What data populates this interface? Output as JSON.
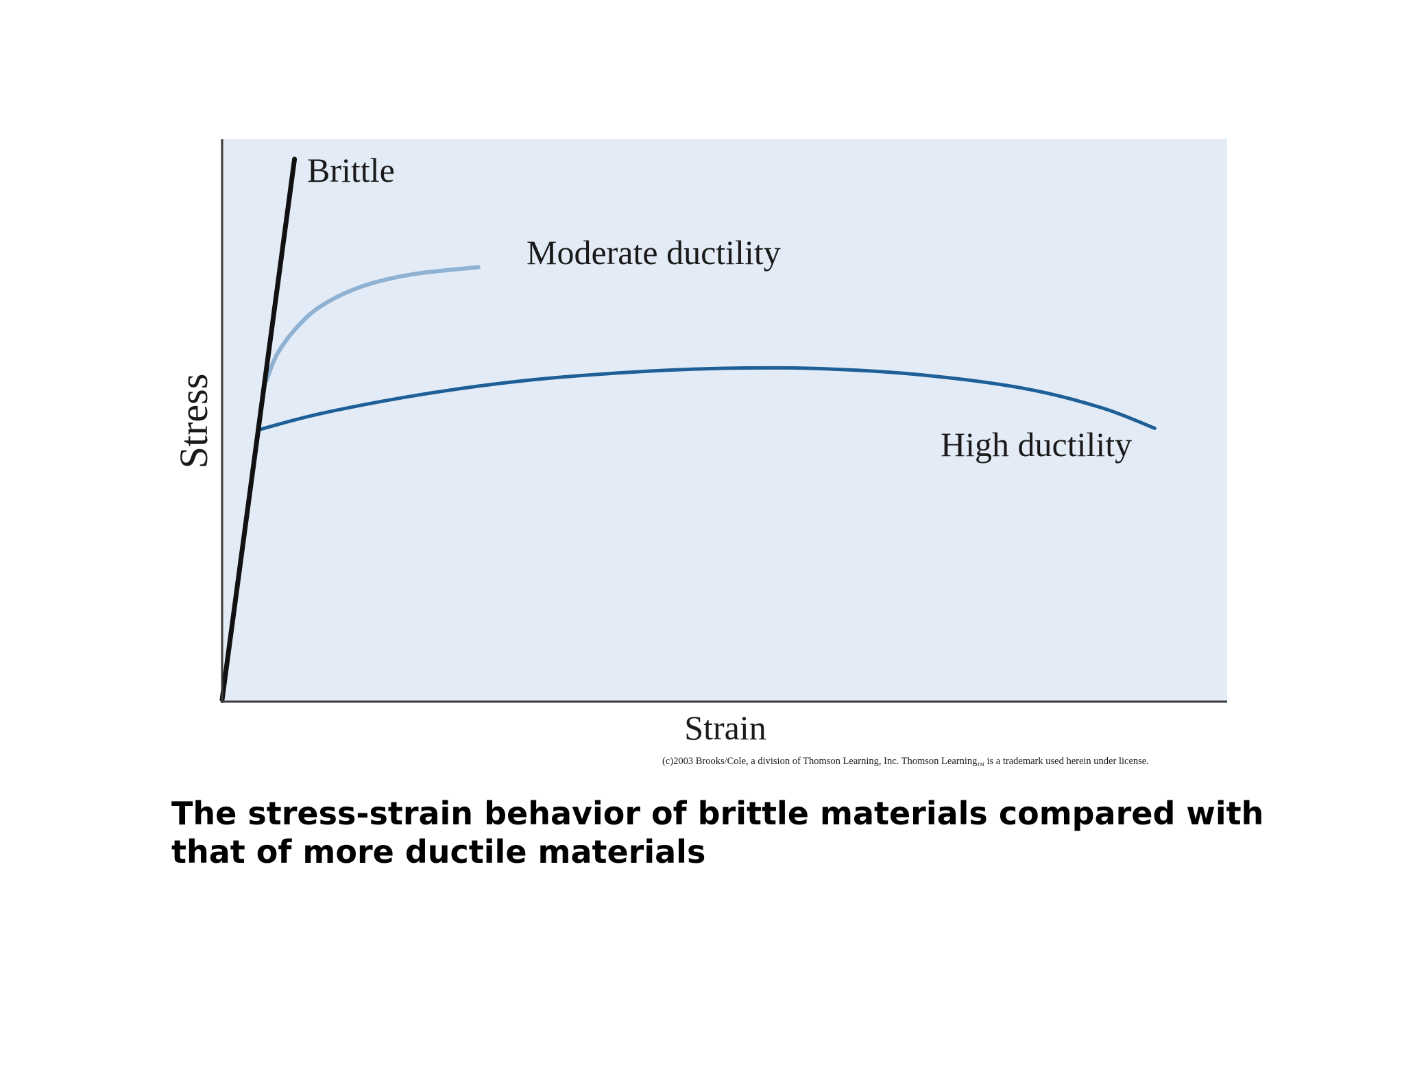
{
  "chart_data": {
    "type": "line",
    "xlabel": "Strain",
    "ylabel": "Stress",
    "grid": false,
    "legend": "none",
    "plot_background": "#e3ebf6",
    "series": [
      {
        "name": "Brittle",
        "color": "#111111",
        "points": [
          [
            0,
            0
          ],
          [
            0.072,
            1.0
          ]
        ]
      },
      {
        "name": "Moderate ductility",
        "color": "#8fb1d2",
        "points": [
          [
            0.044,
            0.59
          ],
          [
            0.055,
            0.64
          ],
          [
            0.075,
            0.69
          ],
          [
            0.1,
            0.73
          ],
          [
            0.14,
            0.765
          ],
          [
            0.19,
            0.787
          ],
          [
            0.255,
            0.8
          ]
        ]
      },
      {
        "name": "High ductility",
        "color": "#1d5f96",
        "points": [
          [
            0.038,
            0.5
          ],
          [
            0.1,
            0.53
          ],
          [
            0.2,
            0.565
          ],
          [
            0.3,
            0.59
          ],
          [
            0.4,
            0.605
          ],
          [
            0.5,
            0.613
          ],
          [
            0.6,
            0.612
          ],
          [
            0.7,
            0.6
          ],
          [
            0.8,
            0.575
          ],
          [
            0.875,
            0.54
          ],
          [
            0.928,
            0.502
          ]
        ]
      }
    ]
  },
  "credit": {
    "main": "(c)2003 Brooks/Cole, a division of Thomson Learning, Inc.  Thomson Learning",
    "tm": "TM",
    "rest": " is a trademark used herein under license."
  },
  "caption": "The stress-strain behavior of brittle materials compared with that of more ductile materials"
}
